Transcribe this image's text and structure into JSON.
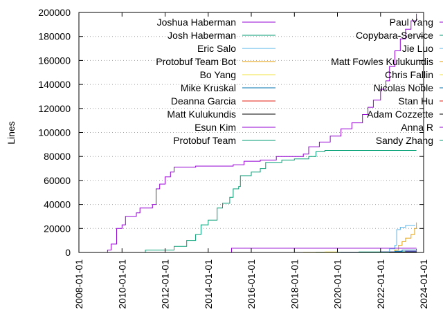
{
  "chart_data": {
    "type": "line",
    "title": "",
    "xlabel": "",
    "ylabel": "Lines",
    "x_type": "date",
    "xlim": [
      "2008-01-01",
      "2024-01-01"
    ],
    "ylim": [
      0,
      200000
    ],
    "yticks": [
      0,
      20000,
      40000,
      60000,
      80000,
      100000,
      120000,
      140000,
      160000,
      180000,
      200000
    ],
    "xticks": [
      "2008-01-01",
      "2010-01-01",
      "2012-01-01",
      "2014-01-01",
      "2016-01-01",
      "2018-01-01",
      "2020-01-01",
      "2022-01-01",
      "2024-01-01"
    ],
    "grid": "horizontal dotted",
    "legend_placement": "top, two columns",
    "series": [
      {
        "name": "Joshua Haberman",
        "color": "#9400d3",
        "shape": "step",
        "points": [
          [
            "2020-01-01",
            0
          ],
          [
            "2020-03-01",
            100
          ],
          [
            "2021-06-01",
            200
          ],
          [
            "2022-01-01",
            500
          ],
          [
            "2023-03-01",
            1000
          ],
          [
            "2023-09-01",
            1500
          ]
        ]
      },
      {
        "name": "Josh Haberman",
        "color": "#009e73",
        "shape": "step",
        "points": [
          [
            "2018-06-01",
            0
          ],
          [
            "2019-01-01",
            200
          ],
          [
            "2021-01-01",
            400
          ],
          [
            "2023-01-01",
            600
          ],
          [
            "2023-09-01",
            700
          ]
        ]
      },
      {
        "name": "Eric Salo",
        "color": "#56b4e9",
        "shape": "step",
        "points": [
          [
            "2022-03-01",
            0
          ],
          [
            "2022-06-01",
            3000
          ],
          [
            "2022-09-01",
            6000
          ],
          [
            "2022-10-01",
            19000
          ],
          [
            "2022-12-01",
            21000
          ],
          [
            "2023-03-01",
            22500
          ],
          [
            "2023-08-01",
            23000
          ]
        ]
      },
      {
        "name": "Protobuf Team Bot",
        "color": "#e69f00",
        "shape": "step",
        "points": [
          [
            "2022-06-01",
            0
          ],
          [
            "2022-09-01",
            2000
          ],
          [
            "2022-11-01",
            6000
          ],
          [
            "2023-01-01",
            9000
          ],
          [
            "2023-03-01",
            12000
          ],
          [
            "2023-06-01",
            15000
          ],
          [
            "2023-08-01",
            20000
          ],
          [
            "2023-09-01",
            25000
          ]
        ]
      },
      {
        "name": "Bo Yang",
        "color": "#f0e442",
        "shape": "step",
        "points": [
          [
            "2017-01-01",
            0
          ],
          [
            "2018-06-01",
            200
          ],
          [
            "2019-06-01",
            400
          ],
          [
            "2020-01-01",
            600
          ]
        ]
      },
      {
        "name": "Mike Kruskal",
        "color": "#0072b2",
        "shape": "step",
        "points": [
          [
            "2022-06-01",
            0
          ],
          [
            "2022-09-01",
            1000
          ],
          [
            "2023-01-01",
            2000
          ],
          [
            "2023-09-01",
            3000
          ]
        ]
      },
      {
        "name": "Deanna Garcia",
        "color": "#e51e10",
        "shape": "step",
        "points": [
          [
            "2021-06-01",
            0
          ],
          [
            "2022-06-01",
            300
          ],
          [
            "2023-09-01",
            500
          ]
        ]
      },
      {
        "name": "Matt Kulukundis",
        "color": "#000000",
        "shape": "step",
        "points": [
          [
            "2022-01-01",
            0
          ],
          [
            "2022-06-01",
            300
          ],
          [
            "2023-09-01",
            500
          ]
        ]
      },
      {
        "name": "Esun Kim",
        "color": "#9400d3",
        "shape": "step",
        "points": [
          [
            "2015-01-01",
            0
          ],
          [
            "2015-02-01",
            3500
          ],
          [
            "2023-09-01",
            3500
          ]
        ]
      },
      {
        "name": "Protobuf Team",
        "color": "#009e73",
        "shape": "step",
        "points": [
          [
            "2011-01-01",
            0
          ],
          [
            "2011-02-01",
            2000
          ],
          [
            "2012-03-01",
            2000
          ],
          [
            "2012-06-01",
            5000
          ],
          [
            "2013-01-01",
            10000
          ],
          [
            "2013-06-01",
            15000
          ],
          [
            "2013-09-01",
            23000
          ],
          [
            "2014-01-01",
            27000
          ],
          [
            "2014-06-01",
            37000
          ],
          [
            "2014-09-01",
            41000
          ],
          [
            "2015-01-01",
            46000
          ],
          [
            "2015-03-01",
            53000
          ],
          [
            "2015-06-01",
            55000
          ],
          [
            "2015-07-01",
            64000
          ],
          [
            "2016-01-01",
            67000
          ],
          [
            "2016-06-01",
            70000
          ],
          [
            "2016-09-01",
            75000
          ],
          [
            "2017-06-01",
            77000
          ],
          [
            "2018-01-01",
            78000
          ],
          [
            "2018-09-01",
            80000
          ],
          [
            "2019-01-01",
            84000
          ],
          [
            "2019-06-01",
            85000
          ],
          [
            "2023-09-01",
            85000
          ]
        ]
      },
      {
        "name": "Paul Yang",
        "color": "#9400d3",
        "shape": "step",
        "points": [
          [
            "2009-03-01",
            0
          ],
          [
            "2009-05-01",
            2000
          ],
          [
            "2009-07-01",
            7000
          ],
          [
            "2009-10-01",
            20000
          ],
          [
            "2010-01-01",
            23000
          ],
          [
            "2010-03-01",
            30000
          ],
          [
            "2010-09-01",
            33000
          ],
          [
            "2010-11-01",
            37000
          ],
          [
            "2011-06-01",
            40000
          ],
          [
            "2011-08-01",
            53000
          ],
          [
            "2011-10-01",
            57000
          ],
          [
            "2012-01-01",
            63000
          ],
          [
            "2012-04-01",
            67000
          ],
          [
            "2012-06-01",
            71000
          ],
          [
            "2013-06-01",
            72000
          ],
          [
            "2015-03-01",
            73000
          ],
          [
            "2015-09-01",
            76000
          ],
          [
            "2016-06-01",
            77000
          ],
          [
            "2017-03-01",
            80000
          ],
          [
            "2018-06-01",
            82000
          ],
          [
            "2018-09-01",
            88000
          ],
          [
            "2019-03-01",
            92000
          ],
          [
            "2019-09-01",
            97000
          ],
          [
            "2020-03-01",
            103000
          ],
          [
            "2020-09-01",
            108000
          ],
          [
            "2021-03-01",
            115000
          ],
          [
            "2021-06-01",
            121000
          ],
          [
            "2021-09-01",
            127000
          ],
          [
            "2022-01-01",
            136000
          ],
          [
            "2022-04-01",
            143000
          ],
          [
            "2022-06-01",
            155000
          ],
          [
            "2022-09-01",
            168000
          ],
          [
            "2022-12-01",
            178000
          ],
          [
            "2023-03-01",
            186000
          ],
          [
            "2023-06-01",
            193000
          ],
          [
            "2023-09-01",
            199000
          ]
        ]
      },
      {
        "name": "Copybara-Service",
        "color": "#009e73",
        "shape": "step",
        "points": []
      },
      {
        "name": "Jie Luo",
        "color": "#56b4e9",
        "shape": "step",
        "points": []
      },
      {
        "name": "Matt Fowles Kulukundis",
        "color": "#e69f00",
        "shape": "step",
        "points": []
      },
      {
        "name": "Chris Fallin",
        "color": "#f0e442",
        "shape": "step",
        "points": []
      },
      {
        "name": "Nicolas Noble",
        "color": "#0072b2",
        "shape": "step",
        "points": []
      },
      {
        "name": "Stan Hu",
        "color": "#e51e10",
        "shape": "step",
        "points": []
      },
      {
        "name": "Adam Cozzette",
        "color": "#000000",
        "shape": "step",
        "points": []
      },
      {
        "name": "Anna R",
        "color": "#9400d3",
        "shape": "step",
        "points": []
      },
      {
        "name": "Sandy Zhang",
        "color": "#009e73",
        "shape": "step",
        "points": []
      }
    ]
  }
}
